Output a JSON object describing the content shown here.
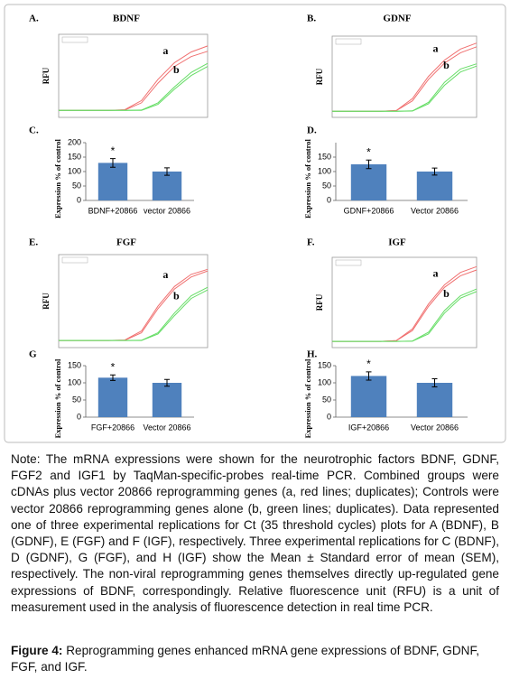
{
  "chart_data": [
    {
      "type": "line",
      "panel": "A.",
      "title": "BDNF",
      "ylabel": "RFU",
      "x": [
        0,
        5,
        10,
        15,
        20,
        25,
        30,
        35,
        40,
        45
      ],
      "xlim": [
        0,
        45
      ],
      "ylim": [
        0,
        1000
      ],
      "series": [
        {
          "name": "a",
          "color": "#f07070",
          "values": [
            20,
            20,
            20,
            20,
            30,
            150,
            430,
            650,
            790,
            870
          ]
        },
        {
          "color": "#f07070",
          "values": [
            20,
            20,
            20,
            20,
            25,
            120,
            380,
            600,
            730,
            800
          ]
        },
        {
          "name": "b",
          "color": "#66dd66",
          "values": [
            20,
            20,
            20,
            20,
            20,
            25,
            120,
            330,
            520,
            640
          ]
        },
        {
          "color": "#66dd66",
          "values": [
            20,
            20,
            20,
            20,
            20,
            22,
            100,
            300,
            480,
            600
          ]
        }
      ]
    },
    {
      "type": "line",
      "panel": "B.",
      "title": "GDNF",
      "ylabel": "RFU",
      "x": [
        0,
        5,
        10,
        15,
        20,
        25,
        30,
        35,
        40,
        45
      ],
      "xlim": [
        0,
        45
      ],
      "ylim": [
        0,
        1000
      ],
      "series": [
        {
          "name": "a",
          "color": "#f07070",
          "values": [
            10,
            10,
            10,
            10,
            20,
            180,
            480,
            700,
            850,
            930
          ]
        },
        {
          "color": "#f07070",
          "values": [
            10,
            10,
            10,
            10,
            18,
            150,
            440,
            660,
            800,
            880
          ]
        },
        {
          "name": "b",
          "color": "#66dd66",
          "values": [
            10,
            10,
            10,
            10,
            10,
            15,
            130,
            400,
            580,
            650
          ]
        },
        {
          "color": "#66dd66",
          "values": [
            10,
            10,
            10,
            10,
            10,
            12,
            110,
            360,
            540,
            620
          ]
        }
      ]
    },
    {
      "type": "bar",
      "panel": "C.",
      "ylabel": "Expression % of control",
      "categories": [
        "BDNF+20866",
        "vector 20866"
      ],
      "values": [
        130,
        100
      ],
      "errors": [
        15,
        13
      ],
      "annotation": "*",
      "color": "#4f81bd",
      "ylim": [
        0,
        200
      ],
      "yticks": [
        0,
        50,
        100,
        150,
        200
      ]
    },
    {
      "type": "bar",
      "panel": "D.",
      "ylabel": "Expression % of control",
      "categories": [
        "GDNF+20866",
        "Vector 20866"
      ],
      "values": [
        125,
        100
      ],
      "errors": [
        15,
        12
      ],
      "annotation": "*",
      "color": "#4f81bd",
      "ylim": [
        0,
        200
      ],
      "yticks": [
        0,
        50,
        100,
        150
      ]
    },
    {
      "type": "line",
      "panel": "E.",
      "title": "FGF",
      "ylabel": "RFU",
      "x": [
        0,
        5,
        10,
        15,
        20,
        25,
        30,
        35,
        40,
        45
      ],
      "xlim": [
        0,
        45
      ],
      "ylim": [
        0,
        1000
      ],
      "series": [
        {
          "name": "a",
          "color": "#f07070",
          "values": [
            20,
            20,
            20,
            20,
            25,
            130,
            420,
            650,
            790,
            850
          ]
        },
        {
          "color": "#f07070",
          "values": [
            20,
            20,
            20,
            20,
            22,
            110,
            390,
            620,
            760,
            830
          ]
        },
        {
          "name": "b",
          "color": "#66dd66",
          "values": [
            20,
            20,
            20,
            20,
            20,
            22,
            110,
            340,
            540,
            640
          ]
        },
        {
          "color": "#66dd66",
          "values": [
            20,
            20,
            20,
            20,
            20,
            20,
            95,
            310,
            510,
            610
          ]
        }
      ]
    },
    {
      "type": "line",
      "panel": "F.",
      "title": "IGF",
      "ylabel": "RFU",
      "x": [
        0,
        5,
        10,
        15,
        20,
        25,
        30,
        35,
        40,
        45
      ],
      "xlim": [
        0,
        45
      ],
      "ylim": [
        0,
        1000
      ],
      "series": [
        {
          "name": "a",
          "color": "#f07070",
          "values": [
            10,
            10,
            10,
            10,
            20,
            160,
            460,
            690,
            840,
            910
          ]
        },
        {
          "color": "#f07070",
          "values": [
            10,
            10,
            10,
            10,
            18,
            140,
            430,
            660,
            800,
            870
          ]
        },
        {
          "name": "b",
          "color": "#66dd66",
          "values": [
            10,
            10,
            10,
            10,
            10,
            14,
            120,
            380,
            560,
            640
          ]
        },
        {
          "color": "#66dd66",
          "values": [
            10,
            10,
            10,
            10,
            10,
            12,
            100,
            350,
            530,
            610
          ]
        }
      ]
    },
    {
      "type": "bar",
      "panel": "G",
      "ylabel": "Expression % of control",
      "categories": [
        "FGF+20866",
        "Vector 20866"
      ],
      "values": [
        115,
        100
      ],
      "errors": [
        8,
        10
      ],
      "annotation": "*",
      "color": "#4f81bd",
      "ylim": [
        0,
        150
      ],
      "yticks": [
        0,
        50,
        100,
        150
      ]
    },
    {
      "type": "bar",
      "panel": "H.",
      "ylabel": "Expression % of control",
      "categories": [
        "IGF+20866",
        "Vector 20866"
      ],
      "values": [
        120,
        100
      ],
      "errors": [
        12,
        12
      ],
      "annotation": "*",
      "color": "#4f81bd",
      "ylim": [
        0,
        150
      ],
      "yticks": [
        0,
        50,
        100,
        150
      ]
    }
  ],
  "note": "Note: The mRNA expressions were shown for the neurotrophic factors BDNF, GDNF, FGF2 and IGF1 by TaqMan-specific-probes real-time PCR. Combined groups were cDNAs plus vector 20866 reprogramming genes (a, red lines; duplicates); Controls were vector 20866 reprogramming genes alone (b, green lines; duplicates). Data represented one of three experimental replications for Ct (35 threshold cycles) plots for A (BDNF), B (GDNF), E (FGF) and F (IGF), respectively. Three experimental replications for C (BDNF), D (GDNF), G (FGF), and H (IGF) show the Mean ± Standard error of mean (SEM), respectively. The non-viral reprogramming genes themselves directly up-regulated gene expressions of BDNF, correspondingly. Relative fluorescence unit (RFU) is a unit of measurement used in the analysis of fluorescence detection in real time PCR.",
  "caption": {
    "label": "Figure 4:",
    "text": "Reprogramming genes enhanced mRNA gene expressions of BDNF, GDNF, FGF, and IGF."
  }
}
